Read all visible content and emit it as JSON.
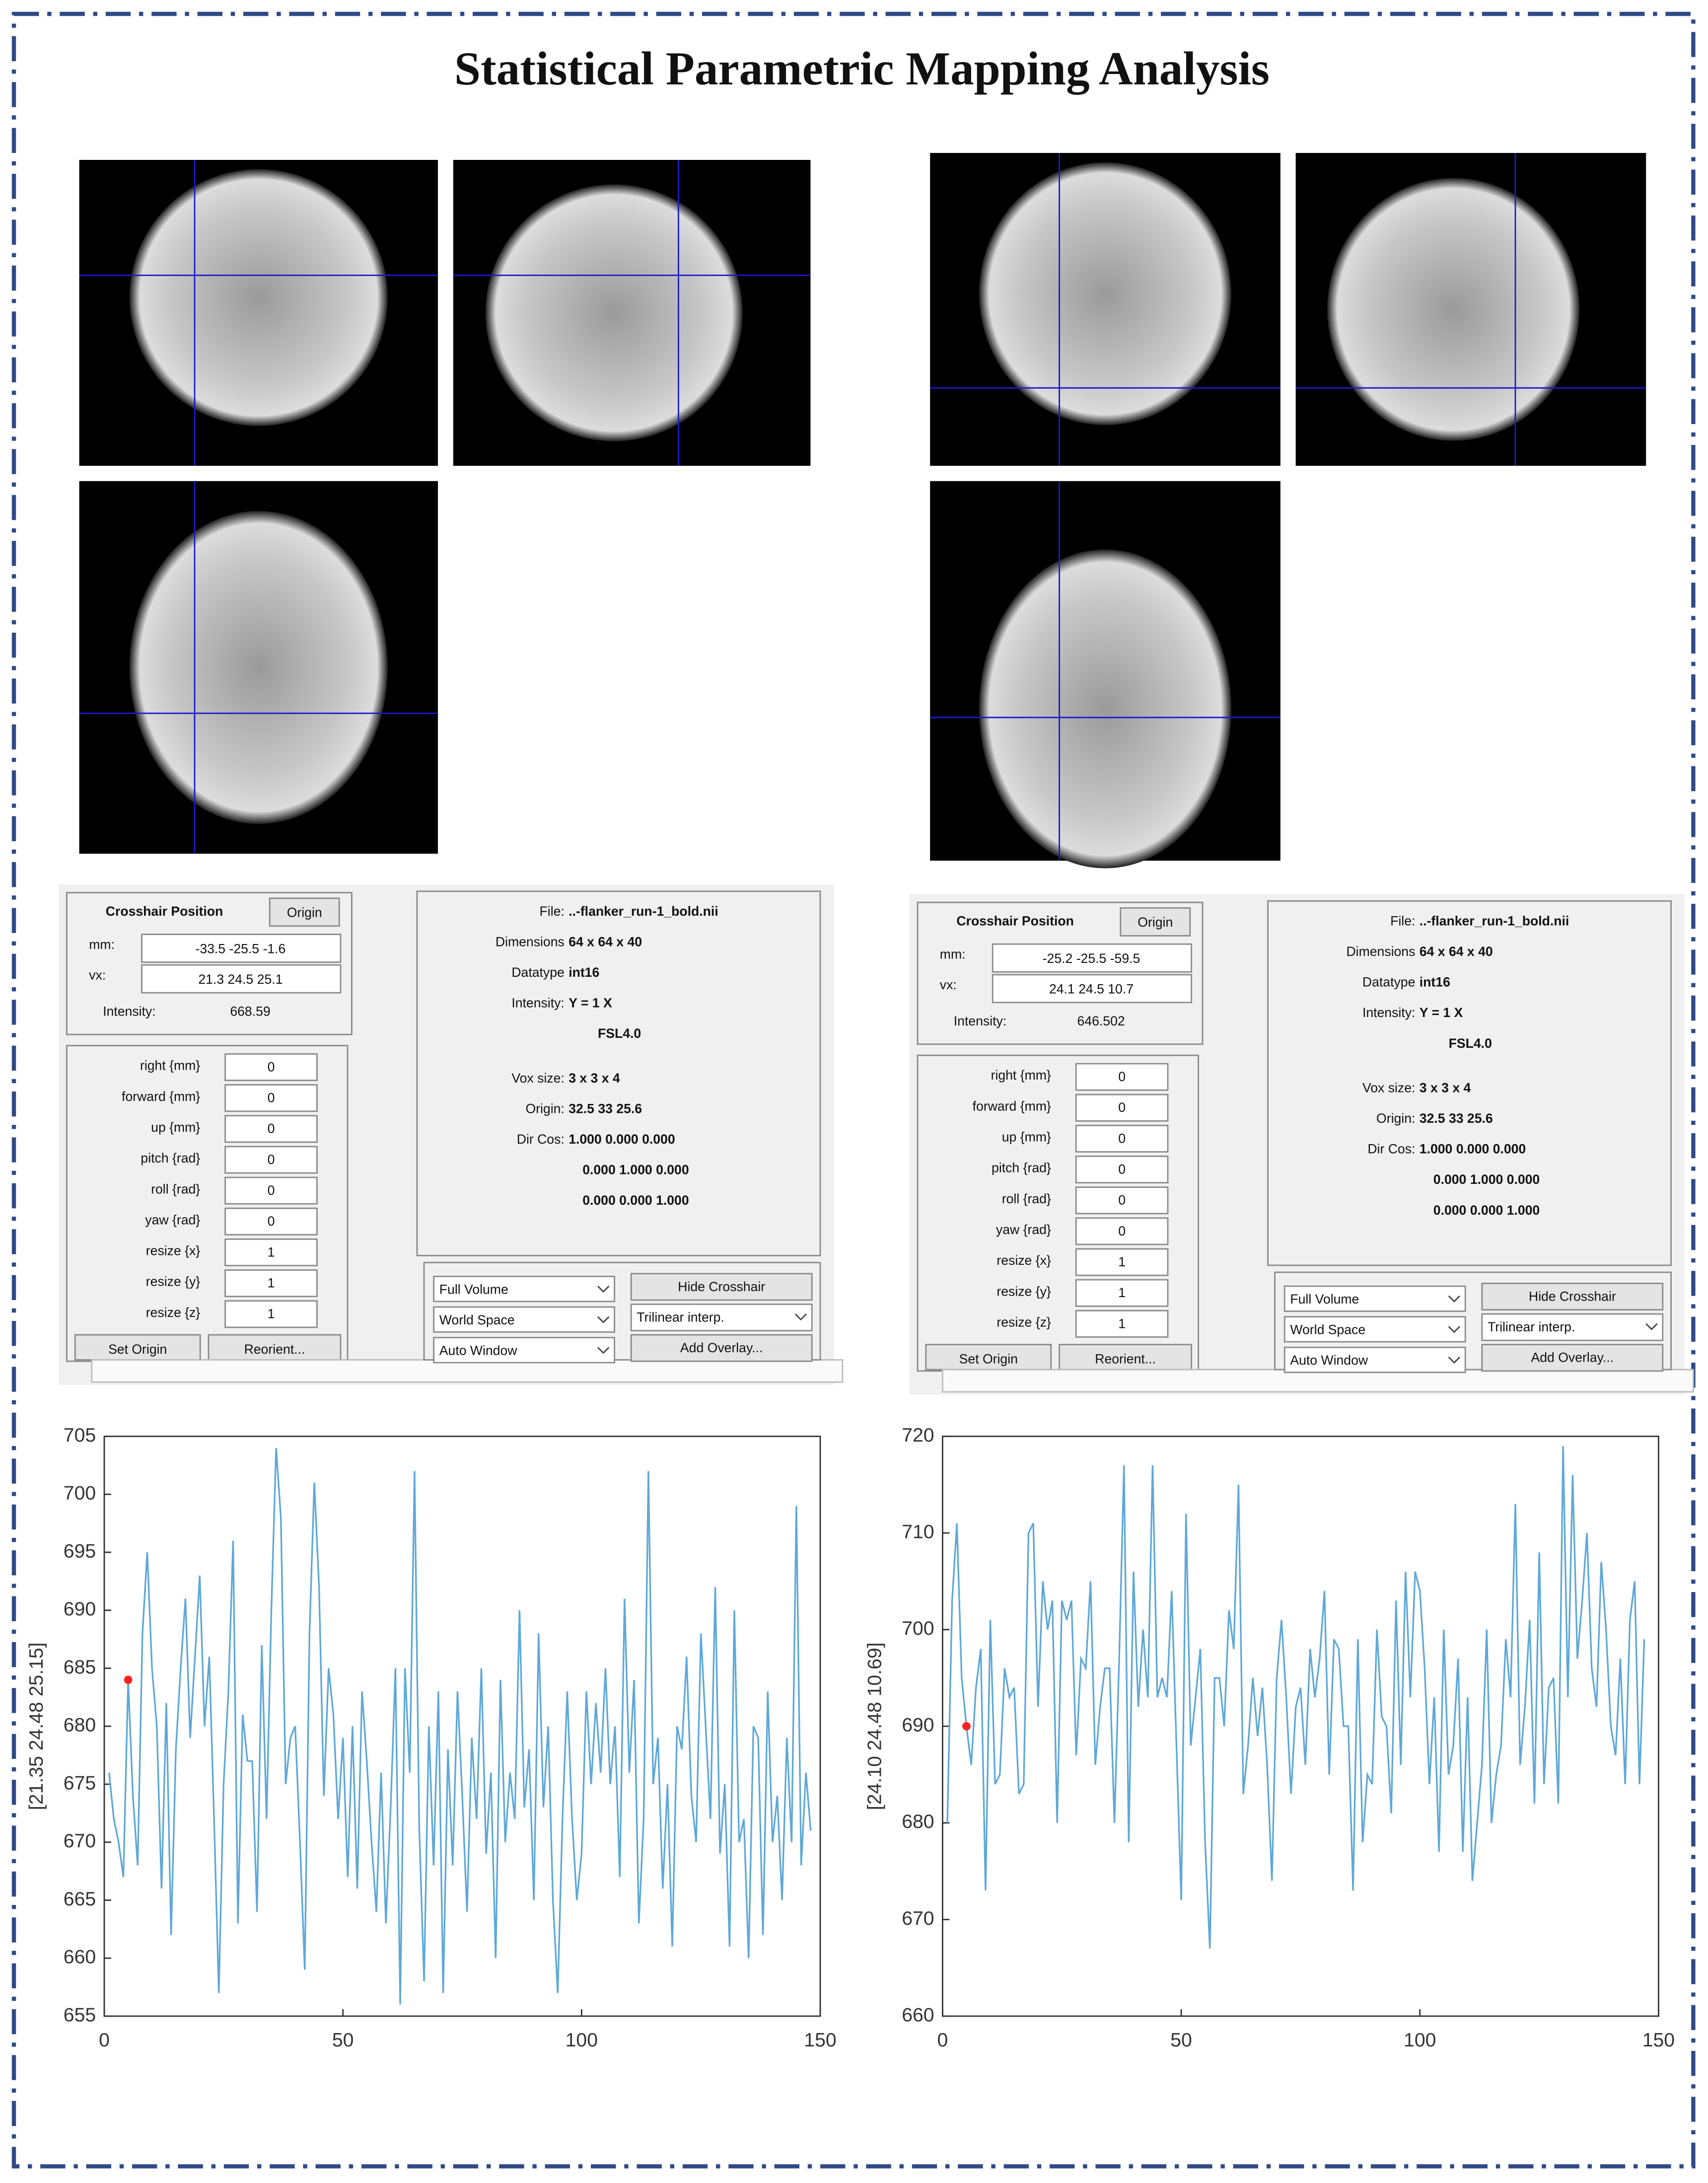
{
  "title": "Statistical Parametric Mapping Analysis",
  "panels": [
    {
      "crosshair": {
        "title": "Crosshair Position",
        "button": "Origin",
        "mm_label": "mm:",
        "mm": "-33.5 -25.5 -1.6",
        "vx_label": "vx:",
        "vx": "21.3 24.5 25.1",
        "intensity_label": "Intensity:",
        "intensity": "668.59"
      },
      "params": {
        "labels": [
          "right {mm}",
          "forward {mm}",
          "up {mm}",
          "pitch {rad}",
          "roll {rad}",
          "yaw {rad}",
          "resize {x}",
          "resize {y}",
          "resize {z}"
        ],
        "values": [
          "0",
          "0",
          "0",
          "0",
          "0",
          "0",
          "1",
          "1",
          "1"
        ]
      },
      "buttons": [
        "Set Origin",
        "Reorient..."
      ],
      "file_info": [
        {
          "label": "File:",
          "value": "..-flanker_run-1_bold.nii"
        },
        {
          "label": "Dimensions",
          "value": "64 x 64 x 40"
        },
        {
          "label": "Datatype",
          "value": "int16"
        },
        {
          "label": "Intensity:",
          "value": "Y = 1 X"
        },
        {
          "value": "FSL4.0"
        },
        {
          "label": "Vox size:",
          "value": "3 x 3 x 4"
        },
        {
          "label": "Origin:",
          "value": "32.5 33 25.6"
        },
        {
          "label": "Dir Cos:",
          "value": "1.000  0.000  0.000"
        },
        {
          "value": "0.000  1.000  0.000"
        },
        {
          "value": "0.000  0.000  1.000"
        }
      ],
      "controls": {
        "dropdowns": [
          "Full Volume",
          "World Space",
          "Auto Window"
        ],
        "right": [
          "Hide Crosshair",
          "Trilinear interp.",
          "Add Overlay..."
        ]
      }
    },
    {
      "crosshair": {
        "title": "Crosshair Position",
        "button": "Origin",
        "mm_label": "mm:",
        "mm": "-25.2 -25.5 -59.5",
        "vx_label": "vx:",
        "vx": "24.1 24.5 10.7",
        "intensity_label": "Intensity:",
        "intensity": "646.502"
      },
      "params": {
        "labels": [
          "right {mm}",
          "forward {mm}",
          "up {mm}",
          "pitch {rad}",
          "roll {rad}",
          "yaw {rad}",
          "resize {x}",
          "resize {y}",
          "resize {z}"
        ],
        "values": [
          "0",
          "0",
          "0",
          "0",
          "0",
          "0",
          "1",
          "1",
          "1"
        ]
      },
      "buttons": [
        "Set Origin",
        "Reorient..."
      ],
      "file_info": [
        {
          "label": "File:",
          "value": "..-flanker_run-1_bold.nii"
        },
        {
          "label": "Dimensions",
          "value": "64 x 64 x 40"
        },
        {
          "label": "Datatype",
          "value": "int16"
        },
        {
          "label": "Intensity:",
          "value": "Y = 1 X"
        },
        {
          "value": "FSL4.0"
        },
        {
          "label": "Vox size:",
          "value": "3 x 3 x 4"
        },
        {
          "label": "Origin:",
          "value": "32.5 33 25.6"
        },
        {
          "label": "Dir Cos:",
          "value": "1.000  0.000  0.000"
        },
        {
          "value": "0.000  1.000  0.000"
        },
        {
          "value": "0.000  0.000  1.000"
        }
      ],
      "controls": {
        "dropdowns": [
          "Full Volume",
          "World Space",
          "Auto Window"
        ],
        "right": [
          "Hide Crosshair",
          "Trilinear interp.",
          "Add Overlay..."
        ]
      }
    }
  ],
  "chart_data": [
    {
      "type": "line",
      "ylabel": "[21.35 24.48 25.15]",
      "color": "#5fa8d8",
      "xlim": [
        0,
        150
      ],
      "xticks": [
        0,
        50,
        100,
        150
      ],
      "ylim": [
        655,
        705
      ],
      "yticks": [
        655,
        660,
        665,
        670,
        675,
        680,
        685,
        690,
        695,
        700,
        705
      ],
      "x": [
        1,
        2,
        3,
        4,
        5,
        6,
        7,
        8,
        9,
        10,
        11,
        12,
        13,
        14,
        15,
        16,
        17,
        18,
        19,
        20,
        21,
        22,
        23,
        24,
        25,
        26,
        27,
        28,
        29,
        30,
        31,
        32,
        33,
        34,
        35,
        36,
        37,
        38,
        39,
        40,
        41,
        42,
        43,
        44,
        45,
        46,
        47,
        48,
        49,
        50,
        51,
        52,
        53,
        54,
        55,
        56,
        57,
        58,
        59,
        60,
        61,
        62,
        63,
        64,
        65,
        66,
        67,
        68,
        69,
        70,
        71,
        72,
        73,
        74,
        75,
        76,
        77,
        78,
        79,
        80,
        81,
        82,
        83,
        84,
        85,
        86,
        87,
        88,
        89,
        90,
        91,
        92,
        93,
        94,
        95,
        96,
        97,
        98,
        99,
        100,
        101,
        102,
        103,
        104,
        105,
        106,
        107,
        108,
        109,
        110,
        111,
        112,
        113,
        114,
        115,
        116,
        117,
        118,
        119,
        120,
        121,
        122,
        123,
        124,
        125,
        126,
        127,
        128,
        129,
        130,
        131,
        132,
        133,
        134,
        135,
        136,
        137,
        138,
        139,
        140,
        141,
        142,
        143,
        144,
        145,
        146,
        147,
        148
      ],
      "values": [
        676,
        672,
        670,
        667,
        684,
        674,
        668,
        688,
        695,
        685,
        680,
        666,
        682,
        662,
        678,
        685,
        691,
        679,
        686,
        693,
        680,
        686,
        672,
        657,
        675,
        683,
        696,
        663,
        681,
        677,
        677,
        664,
        687,
        672,
        690,
        704,
        698,
        675,
        679,
        680,
        670,
        659,
        688,
        701,
        692,
        674,
        685,
        681,
        672,
        679,
        667,
        680,
        666,
        683,
        677,
        670,
        664,
        676,
        663,
        673,
        685,
        656,
        685,
        676,
        702,
        671,
        658,
        680,
        668,
        683,
        657,
        678,
        668,
        683,
        674,
        664,
        679,
        672,
        685,
        669,
        676,
        660,
        684,
        670,
        676,
        672,
        690,
        673,
        678,
        665,
        688,
        673,
        680,
        665,
        657,
        672,
        683,
        672,
        665,
        669,
        683,
        675,
        682,
        676,
        685,
        675,
        680,
        667,
        691,
        676,
        684,
        663,
        672,
        702,
        675,
        679,
        666,
        675,
        661,
        680,
        678,
        686,
        674,
        670,
        688,
        680,
        672,
        692,
        669,
        675,
        661,
        690,
        670,
        672,
        660,
        680,
        679,
        662,
        683,
        670,
        674,
        665,
        679,
        670,
        699,
        668,
        676,
        671
      ],
      "highlight": {
        "x": 5,
        "y": 684,
        "color": "#ff2020"
      }
    },
    {
      "type": "line",
      "ylabel": "[24.10 24.48 10.69]",
      "color": "#5fa8d8",
      "xlim": [
        0,
        150
      ],
      "xticks": [
        0,
        50,
        100,
        150
      ],
      "ylim": [
        660,
        720
      ],
      "yticks": [
        660,
        670,
        680,
        690,
        700,
        710,
        720
      ],
      "x": [
        1,
        2,
        3,
        4,
        5,
        6,
        7,
        8,
        9,
        10,
        11,
        12,
        13,
        14,
        15,
        16,
        17,
        18,
        19,
        20,
        21,
        22,
        23,
        24,
        25,
        26,
        27,
        28,
        29,
        30,
        31,
        32,
        33,
        34,
        35,
        36,
        37,
        38,
        39,
        40,
        41,
        42,
        43,
        44,
        45,
        46,
        47,
        48,
        49,
        50,
        51,
        52,
        53,
        54,
        55,
        56,
        57,
        58,
        59,
        60,
        61,
        62,
        63,
        64,
        65,
        66,
        67,
        68,
        69,
        70,
        71,
        72,
        73,
        74,
        75,
        76,
        77,
        78,
        79,
        80,
        81,
        82,
        83,
        84,
        85,
        86,
        87,
        88,
        89,
        90,
        91,
        92,
        93,
        94,
        95,
        96,
        97,
        98,
        99,
        100,
        101,
        102,
        103,
        104,
        105,
        106,
        107,
        108,
        109,
        110,
        111,
        112,
        113,
        114,
        115,
        116,
        117,
        118,
        119,
        120,
        121,
        122,
        123,
        124,
        125,
        126,
        127,
        128,
        129,
        130,
        131,
        132,
        133,
        134,
        135,
        136,
        137,
        138,
        139,
        140,
        141,
        142,
        143,
        144,
        145,
        146,
        147
      ],
      "values": [
        680,
        703,
        711,
        695,
        690,
        686,
        694,
        698,
        673,
        701,
        684,
        685,
        696,
        693,
        694,
        683,
        684,
        710,
        711,
        692,
        705,
        700,
        703,
        680,
        703,
        701,
        703,
        687,
        697,
        696,
        705,
        686,
        692,
        696,
        696,
        680,
        697,
        717,
        678,
        706,
        692,
        700,
        693,
        717,
        693,
        695,
        693,
        704,
        688,
        672,
        712,
        688,
        693,
        698,
        678,
        667,
        695,
        695,
        690,
        702,
        698,
        715,
        683,
        688,
        695,
        689,
        694,
        686,
        674,
        695,
        701,
        693,
        683,
        692,
        694,
        686,
        698,
        693,
        697,
        704,
        685,
        699,
        698,
        690,
        690,
        673,
        699,
        678,
        685,
        684,
        700,
        691,
        690,
        681,
        703,
        686,
        706,
        693,
        706,
        704,
        696,
        684,
        693,
        677,
        700,
        685,
        688,
        697,
        677,
        693,
        674,
        680,
        686,
        700,
        680,
        685,
        688,
        699,
        693,
        713,
        686,
        692,
        701,
        682,
        708,
        684,
        694,
        695,
        682,
        719,
        693,
        716,
        697,
        703,
        710,
        696,
        692,
        707,
        700,
        690,
        687,
        697,
        684,
        701,
        705,
        684,
        699
      ],
      "highlight": {
        "x": 5,
        "y": 690,
        "color": "#ff2020"
      }
    }
  ]
}
